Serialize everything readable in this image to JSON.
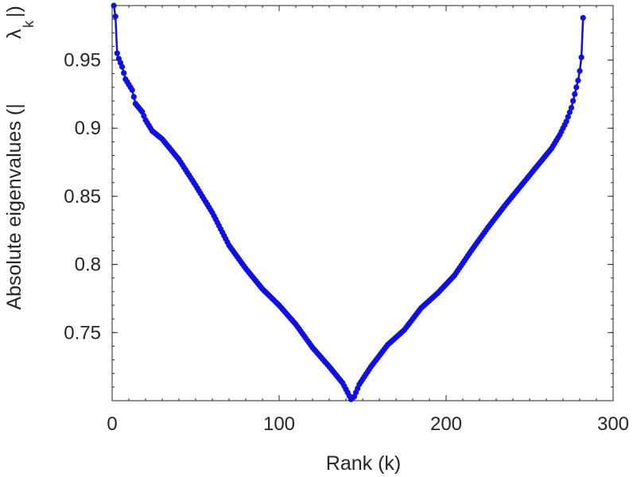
{
  "chart_data": {
    "type": "line",
    "xlabel": "Rank (k)",
    "ylabel": {
      "main": "Absolute eigenvalues (|",
      "lambda": "λ",
      "sub": "k",
      "close": "|)"
    },
    "xlim": [
      0,
      300
    ],
    "ylim": [
      0.7,
      0.99
    ],
    "xticks": [
      0,
      100,
      200,
      300
    ],
    "yticks": [
      0.75,
      0.8,
      0.85,
      0.9,
      0.95
    ],
    "xtick_labels": [
      "0",
      "100",
      "200",
      "300"
    ],
    "ytick_labels": [
      "0.75",
      "0.8",
      "0.85",
      "0.9",
      "0.95"
    ],
    "grid": false,
    "series": [
      {
        "color": "#1010e0",
        "x_start": 1,
        "x_end": 282,
        "min_rank": 143,
        "key_points": [
          [
            1,
            0.99
          ],
          [
            2,
            0.982
          ],
          [
            3,
            0.955
          ],
          [
            4,
            0.951
          ],
          [
            6,
            0.945
          ],
          [
            8,
            0.936
          ],
          [
            12,
            0.928
          ],
          [
            14,
            0.918
          ],
          [
            18,
            0.912
          ],
          [
            20,
            0.906
          ],
          [
            24,
            0.898
          ],
          [
            30,
            0.892
          ],
          [
            40,
            0.877
          ],
          [
            50,
            0.858
          ],
          [
            60,
            0.838
          ],
          [
            70,
            0.814
          ],
          [
            80,
            0.797
          ],
          [
            90,
            0.782
          ],
          [
            100,
            0.77
          ],
          [
            110,
            0.756
          ],
          [
            120,
            0.739
          ],
          [
            130,
            0.725
          ],
          [
            138,
            0.713
          ],
          [
            141,
            0.706
          ],
          [
            143,
            0.701
          ],
          [
            145,
            0.703
          ],
          [
            148,
            0.712
          ],
          [
            155,
            0.725
          ],
          [
            165,
            0.741
          ],
          [
            175,
            0.752
          ],
          [
            185,
            0.768
          ],
          [
            195,
            0.779
          ],
          [
            205,
            0.792
          ],
          [
            215,
            0.81
          ],
          [
            225,
            0.827
          ],
          [
            235,
            0.843
          ],
          [
            245,
            0.858
          ],
          [
            255,
            0.873
          ],
          [
            263,
            0.885
          ],
          [
            268,
            0.895
          ],
          [
            272,
            0.905
          ],
          [
            275,
            0.915
          ],
          [
            277,
            0.925
          ],
          [
            279,
            0.935
          ],
          [
            280,
            0.942
          ],
          [
            281,
            0.952
          ],
          [
            282,
            0.981
          ]
        ]
      }
    ]
  }
}
